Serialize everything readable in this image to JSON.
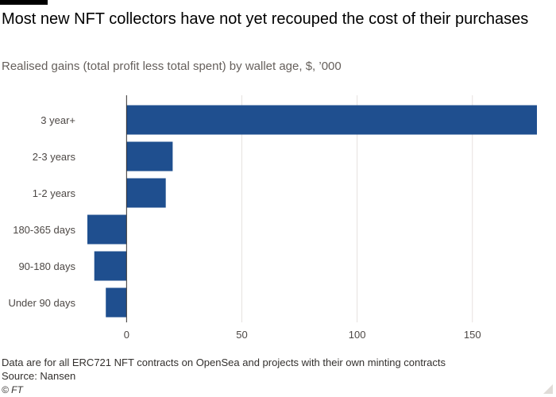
{
  "title": "Most new NFT collectors have not yet recouped the cost of their purchases",
  "subtitle": "Realised gains (total profit less total spent) by wallet age, $, ’000",
  "footnote": "Data are for all ERC721 NFT contracts on OpenSea and projects with their own minting contracts",
  "source": "Source: Nansen",
  "credit": "© FT",
  "colors": {
    "bar": "#1f4f8f",
    "grid": "#e6e2df",
    "zero_line": "#33302e",
    "tick_text": "#4d4845"
  },
  "chart_data": {
    "type": "bar",
    "orientation": "horizontal",
    "categories": [
      "3 year+",
      "2-3 years",
      "1-2 years",
      "180-365 days",
      "90-180 days",
      "Under 90 days"
    ],
    "values": [
      178,
      20,
      17,
      -17,
      -14,
      -9
    ],
    "xlim": [
      -17,
      178
    ],
    "xticks": [
      0,
      50,
      100,
      150
    ],
    "xtick_labels": [
      "0",
      "50",
      "100",
      "150"
    ],
    "grid": true,
    "legend": "none"
  }
}
